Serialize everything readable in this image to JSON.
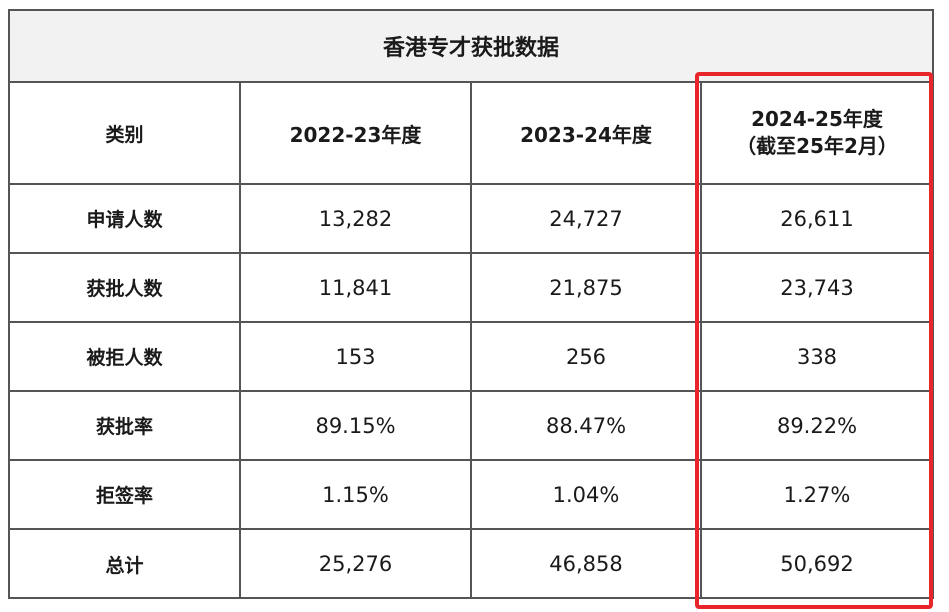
{
  "title": "香港专才获批数据",
  "header": {
    "category": "类别",
    "col1": "2022-23年度",
    "col2": "2023-24年度",
    "col3_line1": "2024-25年度",
    "col3_line2": "（截至25年2月）"
  },
  "rows": [
    {
      "category": "申请人数",
      "v1": "13,282",
      "v2": "24,727",
      "v3": "26,611"
    },
    {
      "category": "获批人数",
      "v1": "11,841",
      "v2": "21,875",
      "v3": "23,743"
    },
    {
      "category": "被拒人数",
      "v1": "153",
      "v2": "256",
      "v3": "338"
    },
    {
      "category": "获批率",
      "v1": "89.15%",
      "v2": "88.47%",
      "v3": "89.22%"
    },
    {
      "category": "拒签率",
      "v1": "1.15%",
      "v2": "1.04%",
      "v3": "1.27%"
    },
    {
      "category": "总计",
      "v1": "25,276",
      "v2": "46,858",
      "v3": "50,692"
    }
  ],
  "colors": {
    "highlight": "#e8262a",
    "border": "#555555",
    "title_background": "#f2f2f2"
  }
}
